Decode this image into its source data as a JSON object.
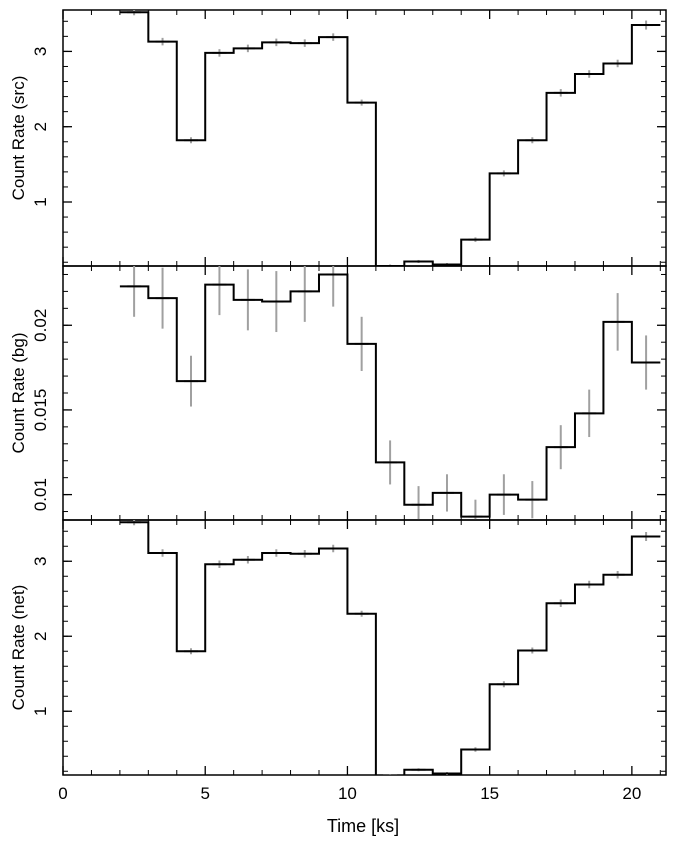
{
  "figure": {
    "xlabel": "Time [ks]"
  },
  "chart_data": [
    {
      "type": "line",
      "title": "",
      "xlabel": "Time [ks]",
      "ylabel": "Count Rate (src)",
      "xlim": [
        0,
        21.2
      ],
      "ylim": [
        0.15,
        3.55
      ],
      "xticks": [
        "0",
        "5",
        "10",
        "15",
        "20"
      ],
      "xtick_values": [
        0,
        5,
        10,
        15,
        20
      ],
      "yticks": [
        "1",
        "2",
        "3"
      ],
      "ytick_values": [
        1,
        2,
        3
      ],
      "bin_edges": [
        2,
        3,
        4,
        5,
        6,
        7,
        8,
        9,
        10,
        11,
        12,
        13,
        14,
        15,
        16,
        17,
        18,
        19,
        20,
        21
      ],
      "series": [
        {
          "step": true,
          "values": [
            3.52,
            3.13,
            1.82,
            2.98,
            3.04,
            3.12,
            3.11,
            3.19,
            2.32,
            0.15,
            0.21,
            0.17,
            0.5,
            1.38,
            1.82,
            2.45,
            2.7,
            2.84,
            3.35
          ],
          "errors": [
            0.04,
            0.05,
            0.04,
            0.05,
            0.05,
            0.05,
            0.05,
            0.05,
            0.04,
            0.02,
            0.02,
            0.02,
            0.03,
            0.04,
            0.04,
            0.05,
            0.05,
            0.05,
            0.06
          ]
        }
      ],
      "grid": false
    },
    {
      "type": "line",
      "title": "",
      "xlabel": "Time [ks]",
      "ylabel": "Count Rate (bg)",
      "xlim": [
        0,
        21.2
      ],
      "ylim": [
        0.0085,
        0.0235
      ],
      "xticks": [
        "0",
        "5",
        "10",
        "15",
        "20"
      ],
      "xtick_values": [
        0,
        5,
        10,
        15,
        20
      ],
      "yticks": [
        "0.01",
        "0.015",
        "0.02"
      ],
      "ytick_values": [
        0.01,
        0.015,
        0.02
      ],
      "bin_edges": [
        2,
        3,
        4,
        5,
        6,
        7,
        8,
        9,
        10,
        11,
        12,
        13,
        14,
        15,
        16,
        17,
        18,
        19,
        20,
        21
      ],
      "series": [
        {
          "step": true,
          "values": [
            0.0223,
            0.0216,
            0.0167,
            0.0224,
            0.0215,
            0.0214,
            0.022,
            0.023,
            0.0189,
            0.0119,
            0.0094,
            0.0101,
            0.0087,
            0.01,
            0.0097,
            0.0128,
            0.0148,
            0.0202,
            0.0178
          ],
          "errors": [
            0.0018,
            0.0018,
            0.0015,
            0.0018,
            0.0018,
            0.0018,
            0.0018,
            0.0019,
            0.0016,
            0.0013,
            0.0011,
            0.0011,
            0.001,
            0.0012,
            0.0011,
            0.0013,
            0.0014,
            0.0017,
            0.0016
          ]
        }
      ],
      "grid": false
    },
    {
      "type": "line",
      "title": "",
      "xlabel": "Time [ks]",
      "ylabel": "Count Rate (net)",
      "xlim": [
        0,
        21.2
      ],
      "ylim": [
        0.15,
        3.55
      ],
      "xticks": [
        "0",
        "5",
        "10",
        "15",
        "20"
      ],
      "xtick_values": [
        0,
        5,
        10,
        15,
        20
      ],
      "yticks": [
        "1",
        "2",
        "3"
      ],
      "ytick_values": [
        1,
        2,
        3
      ],
      "bin_edges": [
        2,
        3,
        4,
        5,
        6,
        7,
        8,
        9,
        10,
        11,
        12,
        13,
        14,
        15,
        16,
        17,
        18,
        19,
        20,
        21
      ],
      "series": [
        {
          "step": true,
          "values": [
            3.52,
            3.11,
            1.8,
            2.96,
            3.02,
            3.11,
            3.1,
            3.17,
            2.3,
            0.14,
            0.22,
            0.17,
            0.49,
            1.36,
            1.81,
            2.44,
            2.69,
            2.82,
            3.33
          ],
          "errors": [
            0.04,
            0.05,
            0.04,
            0.05,
            0.05,
            0.05,
            0.05,
            0.05,
            0.04,
            0.02,
            0.02,
            0.02,
            0.03,
            0.04,
            0.04,
            0.05,
            0.05,
            0.05,
            0.06
          ]
        }
      ],
      "grid": false
    }
  ]
}
